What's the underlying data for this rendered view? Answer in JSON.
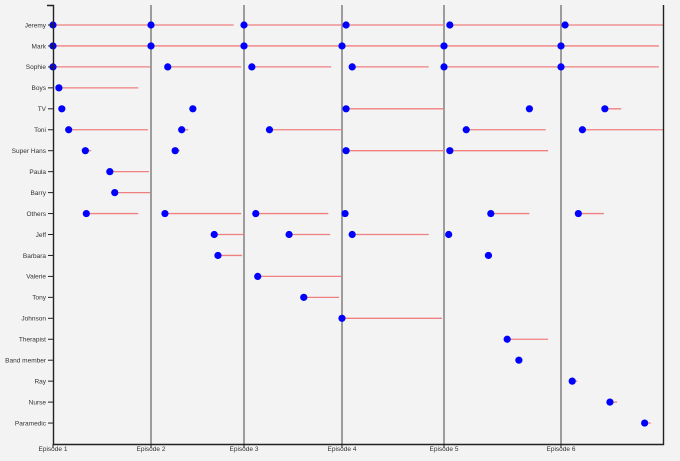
{
  "chart_data": {
    "type": "timeline-dot-segment",
    "title": "",
    "xlabel": "",
    "ylabel": "",
    "x_ticks": [
      "Episode 1",
      "Episode 2",
      "Episode 3",
      "Episode 4",
      "Episode 5",
      "Episode 6"
    ],
    "x_range": [
      1,
      7
    ],
    "grid": "vertical lines at each episode",
    "colors": {
      "dot": "#0000ff",
      "segment": "#f08080",
      "background": "#f3f3f3",
      "episode_line": "#777777",
      "axis": "#222222"
    },
    "series": [
      {
        "name": "Jeremy",
        "segments": [
          [
            1.0,
            2.0
          ],
          [
            2.0,
            2.89
          ],
          [
            3.0,
            4.0
          ],
          [
            4.04,
            5.0
          ],
          [
            5.05,
            6.0
          ],
          [
            6.04,
            7.0
          ]
        ]
      },
      {
        "name": "Mark",
        "segments": [
          [
            1.0,
            2.0
          ],
          [
            2.0,
            3.0
          ],
          [
            3.0,
            4.0
          ],
          [
            4.0,
            5.0
          ],
          [
            5.0,
            6.0
          ],
          [
            6.0,
            6.96
          ]
        ]
      },
      {
        "name": "Sophie",
        "segments": [
          [
            1.0,
            1.99
          ],
          [
            2.18,
            2.97
          ],
          [
            3.08,
            3.89
          ],
          [
            4.1,
            4.85
          ],
          [
            5.0,
            6.0
          ],
          [
            6.0,
            6.96
          ]
        ]
      },
      {
        "name": "Boys",
        "segments": [
          [
            1.06,
            1.87
          ]
        ]
      },
      {
        "name": "TV",
        "segments": [
          [
            1.09,
            1.09
          ],
          [
            2.45,
            2.45
          ],
          [
            4.04,
            5.0
          ],
          [
            5.73,
            5.73
          ],
          [
            6.43,
            6.59
          ]
        ]
      },
      {
        "name": "Toni",
        "segments": [
          [
            1.16,
            1.97
          ],
          [
            2.33,
            2.4
          ],
          [
            3.26,
            4.0
          ],
          [
            5.19,
            5.87
          ],
          [
            6.21,
            7.0
          ]
        ]
      },
      {
        "name": "Super Hans",
        "segments": [
          [
            1.33,
            1.39
          ],
          [
            2.26,
            2.31
          ],
          [
            4.04,
            5.0
          ],
          [
            5.05,
            5.89
          ]
        ]
      },
      {
        "name": "Paula",
        "segments": [
          [
            1.58,
            1.98
          ]
        ]
      },
      {
        "name": "Barry",
        "segments": [
          [
            1.63,
            1.99
          ]
        ]
      },
      {
        "name": "Others",
        "segments": [
          [
            1.34,
            1.87
          ],
          [
            2.15,
            2.97
          ],
          [
            3.12,
            3.86
          ],
          [
            4.03,
            4.03
          ],
          [
            5.4,
            5.73
          ],
          [
            6.17,
            6.42
          ]
        ]
      },
      {
        "name": "Jeff",
        "segments": [
          [
            2.68,
            3.0
          ],
          [
            3.46,
            3.88
          ],
          [
            4.1,
            4.85
          ],
          [
            5.04,
            5.04
          ]
        ]
      },
      {
        "name": "Barbara",
        "segments": [
          [
            2.72,
            2.98
          ],
          [
            5.38,
            5.38
          ]
        ]
      },
      {
        "name": "Valerie",
        "segments": [
          [
            3.14,
            4.0
          ]
        ]
      },
      {
        "name": "Tony",
        "segments": [
          [
            3.61,
            3.97
          ]
        ]
      },
      {
        "name": "Johnson",
        "segments": [
          [
            4.0,
            4.98
          ]
        ]
      },
      {
        "name": "Therapist",
        "segments": [
          [
            5.54,
            5.89
          ]
        ]
      },
      {
        "name": "Band member",
        "segments": [
          [
            5.64,
            5.64
          ]
        ]
      },
      {
        "name": "Ray",
        "segments": [
          [
            6.11,
            6.16
          ]
        ]
      },
      {
        "name": "Nurse",
        "segments": [
          [
            6.48,
            6.55
          ]
        ]
      },
      {
        "name": "Paramedic",
        "segments": [
          [
            6.82,
            6.88
          ]
        ]
      }
    ]
  }
}
